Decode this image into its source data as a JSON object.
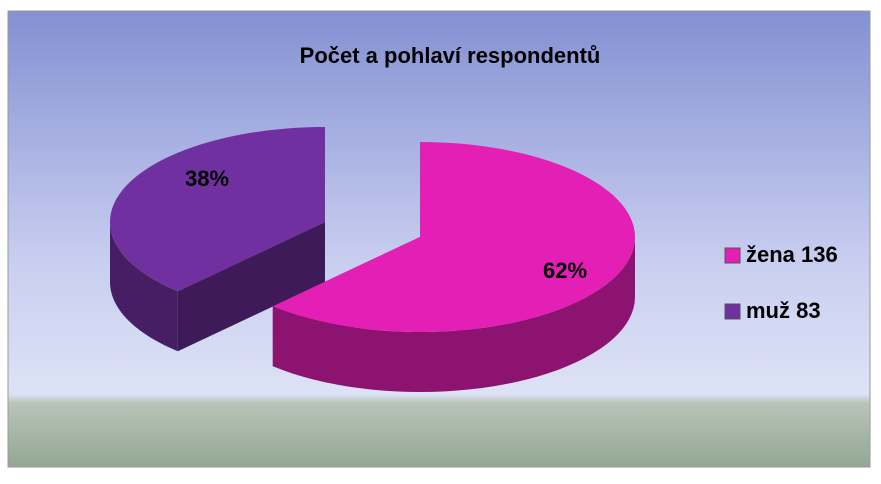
{
  "chart_data": {
    "type": "pie",
    "title": "Počet a pohlaví respondentů",
    "categories": [
      "žena 136",
      "muž 83"
    ],
    "values": [
      62,
      38
    ],
    "value_labels": [
      "62%",
      "38%"
    ],
    "colors": [
      "#e41fb5",
      "#7030a0"
    ],
    "legend": "right"
  }
}
